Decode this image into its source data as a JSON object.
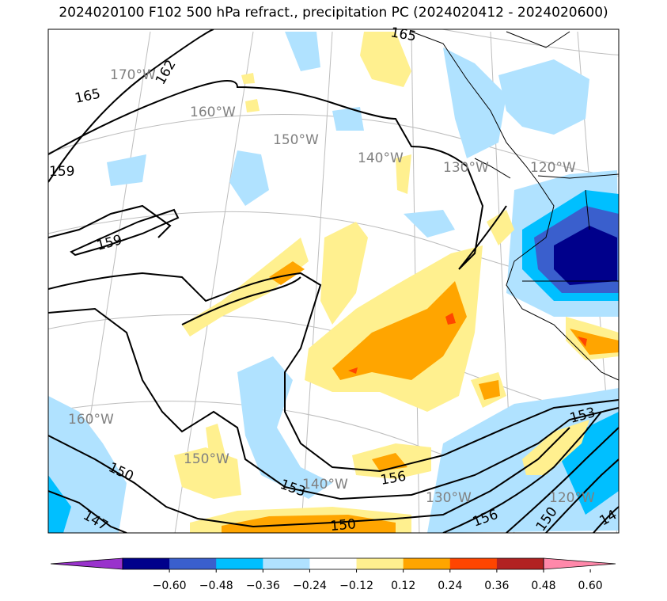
{
  "title": "2024020100 F102 500 hPa refract., precipitation PC (2024020412 - 2024020600)",
  "colorbar": {
    "levels": [
      "−0.60",
      "−0.48",
      "−0.36",
      "−0.24",
      "−0.12",
      "0.12",
      "0.24",
      "0.36",
      "0.48",
      "0.60"
    ],
    "colors": [
      "#9932cc",
      "#00008b",
      "#3a5fcd",
      "#00bfff",
      "#b0e2ff",
      "#ffffff",
      "#fff08f",
      "#ffa500",
      "#ff4500",
      "#b22222",
      "#ff88aa"
    ]
  },
  "graticule_labels": [
    {
      "text": "170°W"
    },
    {
      "text": "160°W"
    },
    {
      "text": "150°W"
    },
    {
      "text": "140°W"
    },
    {
      "text": "130°W"
    },
    {
      "text": "120°W"
    },
    {
      "text": "160°W"
    },
    {
      "text": "150°W"
    },
    {
      "text": "140°W"
    },
    {
      "text": "130°W"
    },
    {
      "text": "120°W"
    }
  ],
  "contour_labels": [
    {
      "text": "165"
    },
    {
      "text": "162"
    },
    {
      "text": "159"
    },
    {
      "text": "159"
    },
    {
      "text": "150"
    },
    {
      "text": "147"
    },
    {
      "text": "153"
    },
    {
      "text": "156"
    },
    {
      "text": "150"
    },
    {
      "text": "156"
    },
    {
      "text": "153"
    },
    {
      "text": "150"
    },
    {
      "text": "165"
    },
    {
      "text": "14"
    }
  ]
}
